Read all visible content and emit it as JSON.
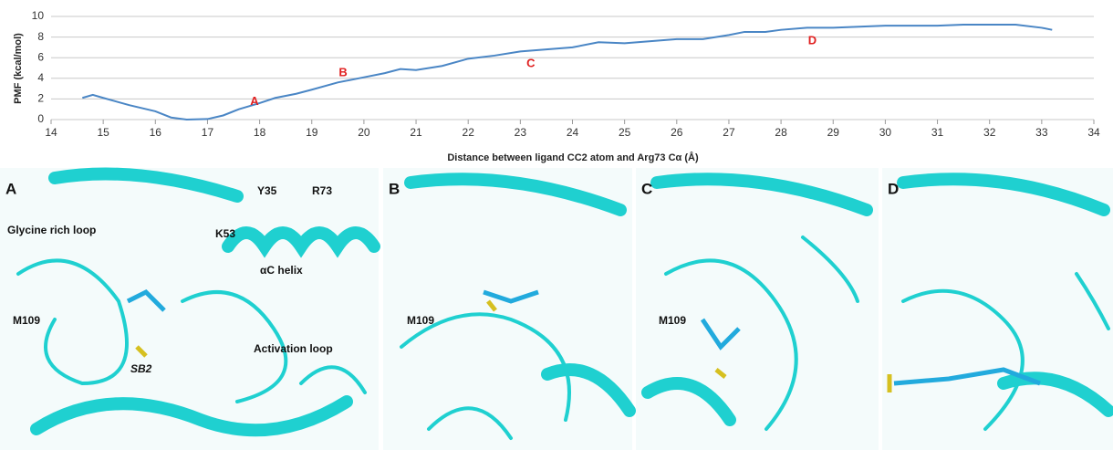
{
  "chart_data": {
    "type": "line",
    "ylabel": "PMF (kcal/mol)",
    "xlabel": "Distance between ligand CC2 atom and Arg73 Cα (Å)",
    "x": [
      14.6,
      14.8,
      15,
      15.5,
      16,
      16.3,
      16.6,
      17,
      17.3,
      17.6,
      18,
      18.3,
      18.7,
      19,
      19.5,
      20,
      20.4,
      20.7,
      21,
      21.5,
      22,
      22.5,
      23,
      23.5,
      24,
      24.5,
      25,
      25.5,
      26,
      26.5,
      27,
      27.3,
      27.7,
      28,
      28.5,
      29,
      29.5,
      30,
      30.5,
      31,
      31.5,
      32,
      32.5,
      33,
      33.2
    ],
    "values": [
      2.1,
      2.4,
      2.1,
      1.4,
      0.8,
      0.2,
      0.0,
      0.05,
      0.4,
      1.0,
      1.6,
      2.1,
      2.5,
      2.9,
      3.6,
      4.1,
      4.5,
      4.9,
      4.8,
      5.2,
      5.9,
      6.2,
      6.6,
      6.8,
      7.0,
      7.5,
      7.4,
      7.6,
      7.8,
      7.8,
      8.2,
      8.5,
      8.5,
      8.7,
      8.9,
      8.9,
      9.0,
      9.1,
      9.1,
      9.1,
      9.2,
      9.2,
      9.2,
      8.9,
      8.7
    ],
    "color": "#4a86c5",
    "xlim": [
      14,
      34
    ],
    "xticks": [
      14,
      15,
      16,
      17,
      18,
      19,
      20,
      21,
      22,
      23,
      24,
      25,
      26,
      27,
      28,
      29,
      30,
      31,
      32,
      33,
      34
    ],
    "ylim": [
      0,
      10
    ],
    "yticks": [
      0,
      2,
      4,
      6,
      8,
      10
    ],
    "grid": true,
    "annotations": [
      {
        "text": "A",
        "x": 17.9,
        "y": 1.7
      },
      {
        "text": "B",
        "x": 19.6,
        "y": 4.5
      },
      {
        "text": "C",
        "x": 23.2,
        "y": 5.4
      },
      {
        "text": "D",
        "x": 28.6,
        "y": 7.6
      }
    ]
  },
  "panels": [
    {
      "label": "A",
      "annotations": [
        "Y35",
        "R73",
        "Glycine rich loop",
        "K53",
        "αC helix",
        "M109",
        "Activation loop",
        "SB2"
      ]
    },
    {
      "label": "B",
      "annotations": [
        "M109"
      ]
    },
    {
      "label": "C",
      "annotations": [
        "M109"
      ]
    },
    {
      "label": "D",
      "annotations": []
    }
  ]
}
